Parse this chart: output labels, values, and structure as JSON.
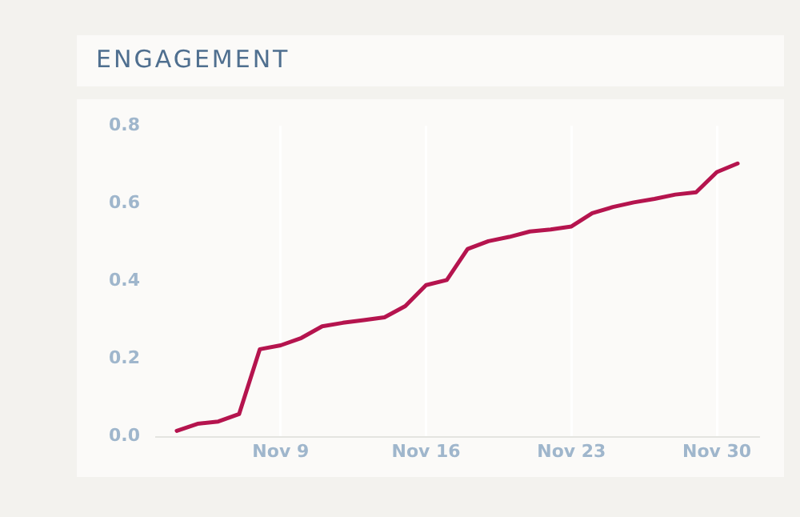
{
  "chart_data": {
    "type": "line",
    "title": "ENGAGEMENT",
    "x": [
      "--11-04",
      "--11-05",
      "--11-06",
      "--11-07",
      "--11-08",
      "--11-09",
      "--11-10",
      "--11-11",
      "--11-12",
      "--11-13",
      "--11-14",
      "--11-15",
      "--11-16",
      "--11-17",
      "--11-18",
      "--11-19",
      "--11-20",
      "--11-21",
      "--11-22",
      "--11-23",
      "--11-24",
      "--11-25",
      "--11-26",
      "--11-27",
      "--11-28",
      "--11-29",
      "--11-30",
      "--12-01"
    ],
    "series": [
      {
        "color": "#b5144e",
        "values": [
          0.015,
          0.033,
          0.039,
          0.058,
          0.225,
          0.235,
          0.254,
          0.284,
          0.293,
          0.3,
          0.307,
          0.336,
          0.39,
          0.403,
          0.483,
          0.503,
          0.514,
          0.528,
          0.533,
          0.541,
          0.575,
          0.591,
          0.603,
          0.612,
          0.623,
          0.629,
          0.681,
          0.703
        ]
      }
    ],
    "xticks": [
      {
        "value": "--11-09",
        "label": "Nov 9"
      },
      {
        "value": "--11-16",
        "label": "Nov 16"
      },
      {
        "value": "--11-23",
        "label": "Nov 23"
      },
      {
        "value": "--11-30",
        "label": "Nov 30"
      }
    ],
    "xlim": [
      "--11-03",
      "--12-02"
    ],
    "ylim": [
      0,
      0.8
    ],
    "yticks": [
      {
        "value": 0,
        "label": "0.0"
      },
      {
        "value": 0.2,
        "label": "0.2"
      },
      {
        "value": 0.4,
        "label": "0.4"
      },
      {
        "value": 0.6,
        "label": "0.6"
      },
      {
        "value": 0.8,
        "label": "0.8"
      }
    ],
    "grid": "x",
    "legend": false,
    "marker": "none",
    "line_style": "solid"
  }
}
